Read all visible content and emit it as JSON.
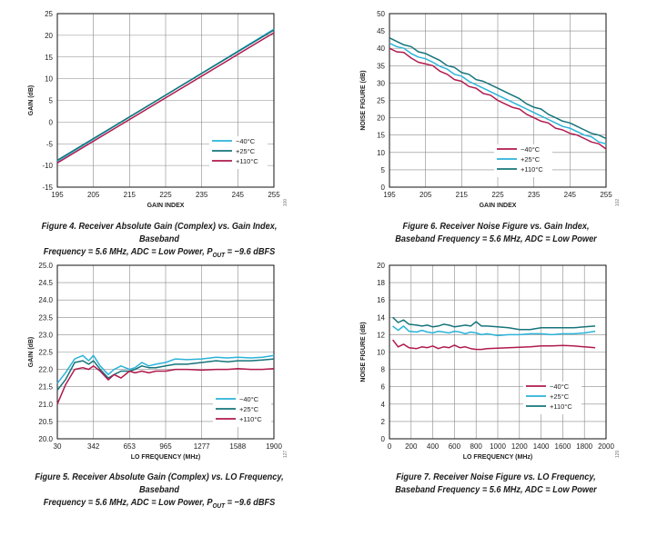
{
  "chart_data": [
    {
      "type": "line",
      "xlabel": "GAIN INDEX",
      "ylabel": "GAIN (dB)",
      "xlim": [
        195,
        255
      ],
      "ylim": [
        -15,
        25
      ],
      "xticks": [
        "195",
        "205",
        "215",
        "225",
        "235",
        "245",
        "255"
      ],
      "yticks": [
        "-15",
        "-10",
        "-5",
        "0",
        "5",
        "10",
        "15",
        "20",
        "25"
      ],
      "legend_position": "bottom-right",
      "series": [
        {
          "name": "−40°C",
          "color": "#2bb3d9",
          "x": [
            195,
            255
          ],
          "y": [
            -9.0,
            21.4
          ]
        },
        {
          "name": "+25°C",
          "color": "#15747a",
          "x": [
            195,
            255
          ],
          "y": [
            -8.8,
            21.2
          ]
        },
        {
          "name": "+110°C",
          "color": "#b0194d",
          "x": [
            195,
            255
          ],
          "y": [
            -9.4,
            20.6
          ]
        }
      ],
      "caption": [
        "Figure 4. Receiver Absolute Gain (Complex) vs. Gain Index, Baseband",
        "Frequency = 5.6 MHz, ADC = Low Power, P",
        "OUT",
        " = −9.6 dBFS"
      ],
      "figure_id": "100"
    },
    {
      "type": "line",
      "xlabel": "GAIN INDEX",
      "ylabel": "NOISE FIGURE (dB)",
      "xlim": [
        195,
        255
      ],
      "ylim": [
        0,
        50
      ],
      "xticks": [
        "195",
        "205",
        "215",
        "225",
        "235",
        "245",
        "255"
      ],
      "yticks": [
        "0",
        "5",
        "10",
        "15",
        "20",
        "25",
        "30",
        "35",
        "40",
        "45",
        "50"
      ],
      "legend_position": "bottom-left",
      "series": [
        {
          "name": "−40°C",
          "color": "#b0194d",
          "x": [
            195,
            197,
            199,
            201,
            203,
            205,
            207,
            209,
            211,
            213,
            215,
            217,
            219,
            221,
            223,
            225,
            227,
            229,
            231,
            233,
            235,
            237,
            239,
            241,
            243,
            245,
            247,
            249,
            251,
            253,
            255
          ],
          "y": [
            40,
            39,
            38.8,
            37.2,
            36,
            35.5,
            35,
            33.4,
            32.5,
            31,
            30.5,
            29,
            28.5,
            27,
            26.5,
            25,
            24,
            23,
            22.5,
            21,
            20,
            19,
            18.5,
            17,
            16.5,
            15.5,
            15,
            14,
            13,
            12.5,
            11
          ]
        },
        {
          "name": "+25°C",
          "color": "#2bb3d9",
          "x": [
            195,
            197,
            199,
            201,
            203,
            205,
            207,
            209,
            211,
            213,
            215,
            217,
            219,
            221,
            223,
            225,
            227,
            229,
            231,
            233,
            235,
            237,
            239,
            241,
            243,
            245,
            247,
            249,
            251,
            253,
            255
          ],
          "y": [
            41.5,
            40.5,
            40,
            38.5,
            37.5,
            37,
            36,
            34.8,
            34,
            32.5,
            32,
            30.5,
            29.5,
            28.5,
            27.5,
            26.5,
            25.5,
            24.5,
            23.5,
            22.5,
            21.5,
            20.5,
            19.5,
            18.5,
            17.5,
            17,
            16,
            15,
            14.5,
            13,
            12.5
          ]
        },
        {
          "name": "+110°C",
          "color": "#15747a",
          "x": [
            195,
            197,
            199,
            201,
            203,
            205,
            207,
            209,
            211,
            213,
            215,
            217,
            219,
            221,
            223,
            225,
            227,
            229,
            231,
            233,
            235,
            237,
            239,
            241,
            243,
            245,
            247,
            249,
            251,
            253,
            255
          ],
          "y": [
            43,
            42,
            41,
            40.5,
            39,
            38.5,
            37.5,
            36.5,
            35,
            34.5,
            33,
            32.5,
            31,
            30.5,
            29.5,
            28.5,
            27.5,
            26.5,
            25.5,
            24,
            23,
            22.5,
            21,
            20,
            19,
            18.5,
            17.5,
            16.5,
            15.5,
            15,
            14
          ]
        }
      ],
      "caption": [
        "Figure 6. Receiver Noise Figure vs. Gain Index,",
        "Baseband Frequency = 5.6 MHz, ADC = Low Power"
      ],
      "figure_id": "102"
    },
    {
      "type": "line",
      "xlabel": "LO FREQUENCY (MHz)",
      "ylabel": "GAIN (dB)",
      "xlim": [
        30,
        1900
      ],
      "ylim": [
        20.0,
        25.0
      ],
      "xticks": [
        "30",
        "342",
        "653",
        "965",
        "1277",
        "1588",
        "1900"
      ],
      "yticks": [
        "20.0",
        "20.5",
        "21.0",
        "21.5",
        "22.0",
        "22.5",
        "23.0",
        "23.5",
        "24.0",
        "24.5",
        "25.0"
      ],
      "legend_position": "bottom-right",
      "series": [
        {
          "name": "−40°C",
          "color": "#2bb3d9",
          "x": [
            30,
            100,
            180,
            250,
            300,
            342,
            400,
            470,
            520,
            580,
            653,
            700,
            760,
            820,
            880,
            965,
            1050,
            1150,
            1277,
            1400,
            1500,
            1588,
            1700,
            1800,
            1900
          ],
          "y": [
            21.6,
            21.9,
            22.3,
            22.4,
            22.25,
            22.4,
            22.1,
            21.85,
            22.0,
            22.1,
            22.0,
            22.05,
            22.2,
            22.1,
            22.15,
            22.2,
            22.3,
            22.28,
            22.3,
            22.35,
            22.33,
            22.35,
            22.33,
            22.35,
            22.4
          ]
        },
        {
          "name": "+25°C",
          "color": "#15747a",
          "x": [
            30,
            100,
            180,
            250,
            300,
            342,
            400,
            470,
            520,
            580,
            653,
            700,
            760,
            820,
            880,
            965,
            1050,
            1150,
            1277,
            1400,
            1500,
            1588,
            1700,
            1800,
            1900
          ],
          "y": [
            21.4,
            21.7,
            22.2,
            22.25,
            22.15,
            22.25,
            22.0,
            21.75,
            21.85,
            21.95,
            21.95,
            22.0,
            22.1,
            22.05,
            22.05,
            22.1,
            22.15,
            22.15,
            22.2,
            22.25,
            22.22,
            22.25,
            22.25,
            22.27,
            22.3
          ]
        },
        {
          "name": "+110°C",
          "color": "#b0194d",
          "x": [
            30,
            100,
            180,
            250,
            300,
            342,
            400,
            470,
            520,
            580,
            653,
            700,
            760,
            820,
            880,
            965,
            1050,
            1150,
            1277,
            1400,
            1500,
            1588,
            1700,
            1800,
            1900
          ],
          "y": [
            21.0,
            21.55,
            22.0,
            22.05,
            22.0,
            22.1,
            21.95,
            21.7,
            21.85,
            21.75,
            21.95,
            21.9,
            21.95,
            21.9,
            21.95,
            21.95,
            22.0,
            22.0,
            21.98,
            22.0,
            22.0,
            22.02,
            22.0,
            22.0,
            22.02
          ]
        }
      ],
      "caption": [
        "Figure 5. Receiver Absolute Gain (Complex) vs. LO Frequency, Baseband",
        "Frequency = 5.6 MHz, ADC = Low Power, P",
        "OUT",
        " = −9.6 dBFS"
      ],
      "figure_id": "127"
    },
    {
      "type": "line",
      "xlabel": "LO FREQUENCY (MHz)",
      "ylabel": "NOISE FIGURE (dB)",
      "xlim": [
        0,
        2000
      ],
      "ylim": [
        0,
        20
      ],
      "xticks": [
        "0",
        "200",
        "400",
        "600",
        "800",
        "1000",
        "1200",
        "1400",
        "1600",
        "1800",
        "2000"
      ],
      "yticks": [
        "0",
        "2",
        "4",
        "6",
        "8",
        "10",
        "12",
        "14",
        "16",
        "18",
        "20"
      ],
      "legend_position": "bottom-right",
      "series": [
        {
          "name": "−40°C",
          "color": "#b0194d",
          "x": [
            30,
            80,
            130,
            180,
            250,
            300,
            350,
            400,
            450,
            500,
            550,
            600,
            650,
            700,
            750,
            800,
            850,
            900,
            1000,
            1100,
            1200,
            1300,
            1400,
            1500,
            1600,
            1700,
            1800,
            1900
          ],
          "y": [
            11.4,
            10.6,
            10.9,
            10.5,
            10.4,
            10.6,
            10.5,
            10.7,
            10.4,
            10.6,
            10.5,
            10.8,
            10.5,
            10.6,
            10.4,
            10.3,
            10.3,
            10.4,
            10.45,
            10.5,
            10.55,
            10.6,
            10.7,
            10.7,
            10.75,
            10.7,
            10.6,
            10.5
          ]
        },
        {
          "name": "+25°C",
          "color": "#2bb3d9",
          "x": [
            30,
            80,
            130,
            180,
            250,
            300,
            350,
            400,
            450,
            500,
            550,
            600,
            650,
            700,
            750,
            800,
            850,
            900,
            1000,
            1100,
            1200,
            1300,
            1400,
            1500,
            1600,
            1700,
            1800,
            1900
          ],
          "y": [
            13.0,
            12.5,
            13.0,
            12.4,
            12.3,
            12.5,
            12.3,
            12.2,
            12.4,
            12.3,
            12.2,
            12.4,
            12.3,
            12.1,
            12.3,
            12.2,
            12.0,
            12.1,
            11.9,
            12.0,
            12.0,
            12.1,
            12.1,
            12.0,
            12.1,
            12.1,
            12.2,
            12.4
          ]
        },
        {
          "name": "+110°C",
          "color": "#15747a",
          "x": [
            30,
            80,
            130,
            180,
            250,
            300,
            350,
            400,
            450,
            500,
            550,
            600,
            650,
            700,
            750,
            800,
            850,
            900,
            1000,
            1100,
            1200,
            1300,
            1400,
            1500,
            1600,
            1700,
            1800,
            1900
          ],
          "y": [
            14.0,
            13.4,
            13.7,
            13.2,
            13.1,
            13.0,
            13.1,
            12.9,
            13.0,
            13.2,
            13.1,
            12.9,
            13.0,
            13.1,
            13.0,
            13.5,
            13.0,
            13.0,
            12.9,
            12.8,
            12.6,
            12.6,
            12.8,
            12.8,
            12.8,
            12.8,
            12.9,
            13.0
          ]
        }
      ],
      "caption": [
        "Figure 7. Receiver Noise Figure vs. LO Frequency,",
        "Baseband Frequency = 5.6 MHz, ADC = Low Power"
      ],
      "figure_id": "129"
    }
  ]
}
